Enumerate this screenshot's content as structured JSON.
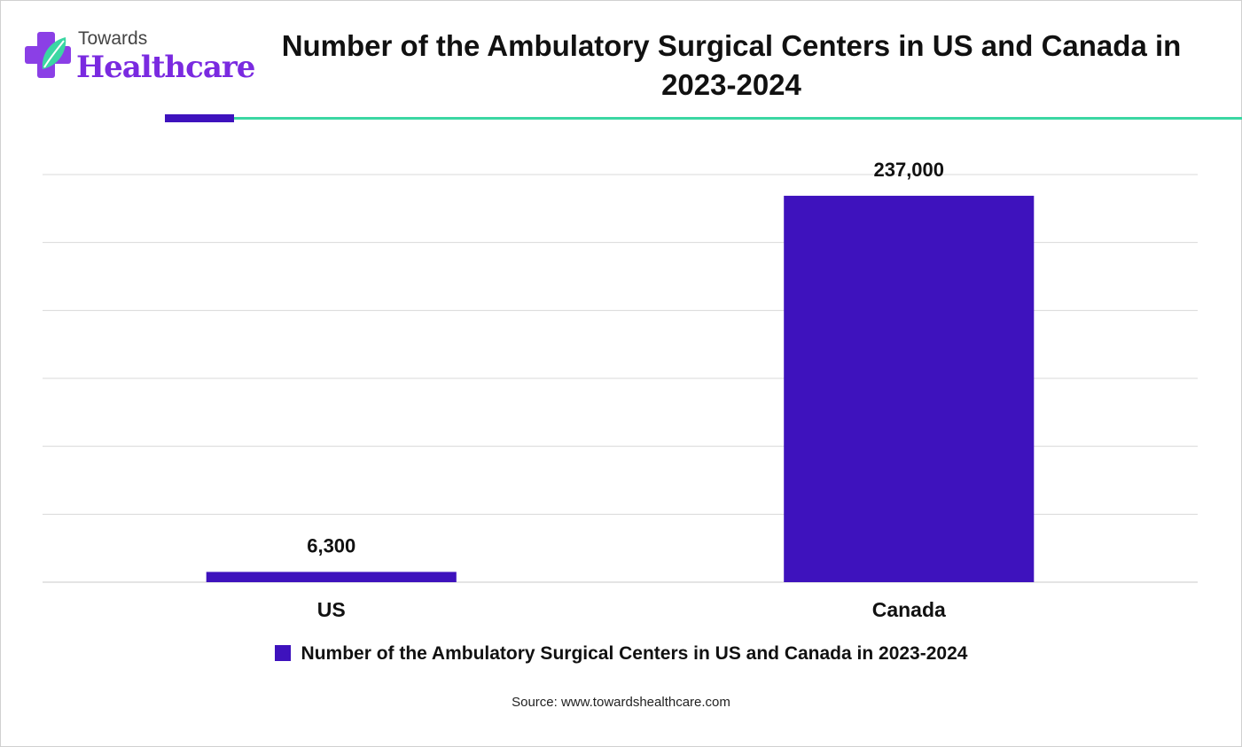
{
  "brand": {
    "line1": "Towards",
    "line2": "Healthcare",
    "colors": {
      "primary": "#7a2ae0",
      "accent": "#3bd7a3",
      "dark": "#3e12bd"
    }
  },
  "chart_data": {
    "type": "bar",
    "title": "Number of the Ambulatory Surgical Centers in US and Canada in 2023-2024",
    "categories": [
      "US",
      "Canada"
    ],
    "series": [
      {
        "name": "Number of the Ambulatory Surgical Centers in US and Canada in 2023-2024",
        "values": [
          6300,
          237000
        ],
        "labels": [
          "6,300",
          "237,000"
        ],
        "color": "#3e12bd"
      }
    ],
    "xlabel": "",
    "ylabel": "",
    "ylim": [
      0,
      250000
    ],
    "grid": true,
    "legend_position": "bottom"
  },
  "footer": {
    "source": "Source: www.towardshealthcare.com"
  }
}
